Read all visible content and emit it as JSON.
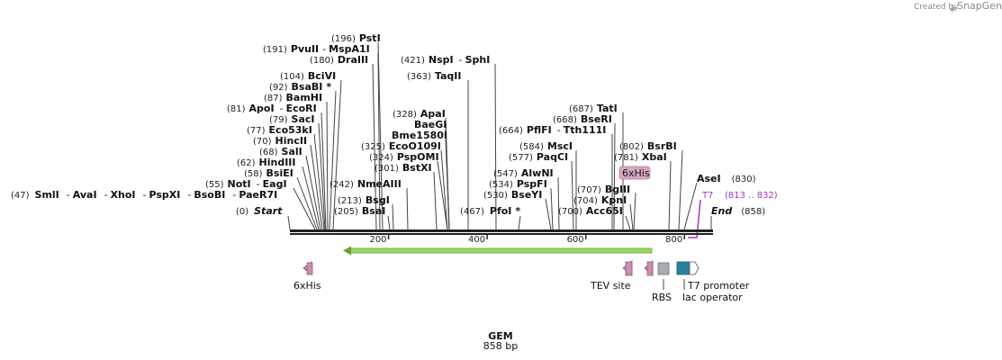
{
  "header": {
    "created_by": "Created by",
    "brand": "SnapGene"
  },
  "map": {
    "name": "GEM",
    "length_label": "858 bp",
    "length": 858
  },
  "ticks": [
    {
      "bp": 200,
      "label": "200"
    },
    {
      "bp": 400,
      "label": "400"
    },
    {
      "bp": 600,
      "label": "600"
    },
    {
      "bp": 800,
      "label": "800"
    }
  ],
  "sites": {
    "s01": {
      "pos": "(196)",
      "name": "PstI"
    },
    "s02": {
      "pos": "(191)",
      "name": "PvuII",
      "sep": "-",
      "name2": "MspA1I"
    },
    "s03": {
      "pos": "(180)",
      "name": "DraIII"
    },
    "s04": {
      "pos": "(104)",
      "name": "BciVI"
    },
    "s05": {
      "pos": "(92)",
      "name": "BsaBI",
      "mark": "*"
    },
    "s06": {
      "pos": "(87)",
      "name": "BamHI"
    },
    "s07": {
      "pos": "(81)",
      "name": "ApoI",
      "sep": "-",
      "name2": "EcoRI"
    },
    "s08": {
      "pos": "(79)",
      "name": "SacI"
    },
    "s09": {
      "pos": "(77)",
      "name": "Eco53kI"
    },
    "s10": {
      "pos": "(70)",
      "name": "HincII"
    },
    "s11": {
      "pos": "(68)",
      "name": "SalI"
    },
    "s12": {
      "pos": "(62)",
      "name": "HindIII"
    },
    "s13": {
      "pos": "(58)",
      "name": "BsiEI"
    },
    "s14": {
      "pos": "(55)",
      "name": "NotI",
      "sep": "-",
      "name2": "EagI"
    },
    "s15": {
      "pos": "(47)",
      "name": "SmlI",
      "sep1": "-",
      "n2": "AvaI",
      "sep2": "-",
      "n3": "XhoI",
      "sep3": "-",
      "n4": "PspXI",
      "sep4": "-",
      "n5": "BsoBI",
      "sep5": "-",
      "n6": "PaeR7I"
    },
    "s16": {
      "pos": "(0)",
      "name": "Start"
    },
    "s17": {
      "pos": "(421)",
      "name": "NspI",
      "sep": "-",
      "name2": "SphI"
    },
    "s18": {
      "pos": "(363)",
      "name": "TaqII"
    },
    "s19": {
      "pos": "(328)",
      "name": "ApaI"
    },
    "s20": {
      "name": "BaeGI"
    },
    "s21": {
      "name": "Bme1580I"
    },
    "s22": {
      "pos": "(325)",
      "name": "EcoO109I"
    },
    "s23": {
      "pos": "(324)",
      "name": "PspOMI"
    },
    "s24": {
      "pos": "(301)",
      "name": "BstXI"
    },
    "s25": {
      "pos": "(242)",
      "name": "NmeAIII"
    },
    "s26": {
      "pos": "(213)",
      "name": "BsgI"
    },
    "s27": {
      "pos": "(205)",
      "name": "BsaI"
    },
    "s28": {
      "pos": "(467)",
      "name": "PfoI",
      "mark": "*"
    },
    "s29": {
      "pos": "(687)",
      "name": "TatI"
    },
    "s30": {
      "pos": "(668)",
      "name": "BseRI"
    },
    "s31": {
      "pos": "(664)",
      "name": "PflFI",
      "sep": "-",
      "name2": "Tth111I"
    },
    "s32": {
      "pos": "(584)",
      "name": "MscI"
    },
    "s33": {
      "pos": "(577)",
      "name": "PaqCI"
    },
    "s34": {
      "pos": "(547)",
      "name": "AlwNI"
    },
    "s35": {
      "pos": "(534)",
      "name": "PspFI"
    },
    "s36": {
      "pos": "(530)",
      "name": "BseYI"
    },
    "s37": {
      "pos": "(707)",
      "name": "BglII"
    },
    "s38": {
      "pos": "(704)",
      "name": "KpnI"
    },
    "s39": {
      "pos": "(700)",
      "name": "Acc65I"
    },
    "s40": {
      "pos": "(802)",
      "name": "BsrBI"
    },
    "s41": {
      "pos": "(781)",
      "name": "XbaI"
    },
    "s42": {
      "name": "AseI",
      "pos": "(830)"
    },
    "s43": {
      "name": "End",
      "pos": "(858)"
    }
  },
  "primer": {
    "name": "T7",
    "range": "(813 .. 832)"
  },
  "top_feature": {
    "label": "6xHis"
  },
  "features": {
    "his": "6xHis",
    "tev": "TEV site",
    "rbs": "RBS",
    "t7p": "T7 promoter",
    "lac": "lac operator"
  },
  "colors": {
    "backbone": "#222222",
    "orf": "#8fd14f",
    "his_tag": "#c98fb0",
    "rbs": "#a8adb3",
    "t7": "#2a7f9e",
    "primer": "#a03acf"
  }
}
